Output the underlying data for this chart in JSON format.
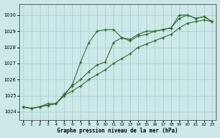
{
  "bg_color": "#cce8e8",
  "grid_color": "#aacece",
  "line_color": "#2d6a2d",
  "xlabel": "Graphe pression niveau de la mer (hPa)",
  "xlim": [
    -0.5,
    23.5
  ],
  "ylim": [
    1023.5,
    1030.7
  ],
  "yticks": [
    1024,
    1025,
    1026,
    1027,
    1028,
    1029,
    1030
  ],
  "xticks": [
    0,
    1,
    2,
    3,
    4,
    5,
    6,
    7,
    8,
    9,
    10,
    11,
    12,
    13,
    14,
    15,
    16,
    17,
    18,
    19,
    20,
    21,
    22,
    23
  ],
  "line1_x": [
    0,
    1,
    2,
    3,
    4,
    5,
    6,
    7,
    8,
    9,
    10,
    11,
    12,
    13,
    14,
    15,
    16,
    17,
    18,
    19,
    20,
    21,
    22,
    23
  ],
  "line1": [
    1024.3,
    1024.2,
    1024.3,
    1024.4,
    1024.5,
    1025.0,
    1025.7,
    1027.1,
    1028.3,
    1029.0,
    1029.1,
    1029.1,
    1028.6,
    1028.5,
    1028.8,
    1029.0,
    1029.0,
    1029.1,
    1029.2,
    1030.0,
    1030.0,
    1029.8,
    1029.9,
    1029.6
  ],
  "line2_x": [
    0,
    1,
    2,
    3,
    4,
    5,
    6,
    7,
    8,
    9,
    10,
    11,
    12,
    13,
    14,
    15,
    16,
    17,
    18,
    19,
    20,
    21,
    22,
    23
  ],
  "line2": [
    1024.3,
    1024.2,
    1024.3,
    1024.5,
    1024.5,
    1025.1,
    1025.6,
    1026.0,
    1026.5,
    1026.9,
    1027.1,
    1028.3,
    1028.6,
    1028.4,
    1028.7,
    1028.8,
    1029.0,
    1029.1,
    1029.2,
    1029.8,
    1030.0,
    1029.8,
    1029.9,
    1029.6
  ],
  "line3_x": [
    0,
    1,
    2,
    3,
    4,
    5,
    6,
    7,
    8,
    9,
    10,
    11,
    12,
    13,
    14,
    15,
    16,
    17,
    18,
    19,
    20,
    21,
    22,
    23
  ],
  "line3": [
    1024.3,
    1024.2,
    1024.3,
    1024.4,
    1024.5,
    1025.0,
    1025.3,
    1025.6,
    1026.0,
    1026.3,
    1026.6,
    1027.0,
    1027.3,
    1027.6,
    1028.0,
    1028.2,
    1028.4,
    1028.6,
    1028.8,
    1029.2,
    1029.5,
    1029.6,
    1029.7,
    1029.6
  ]
}
